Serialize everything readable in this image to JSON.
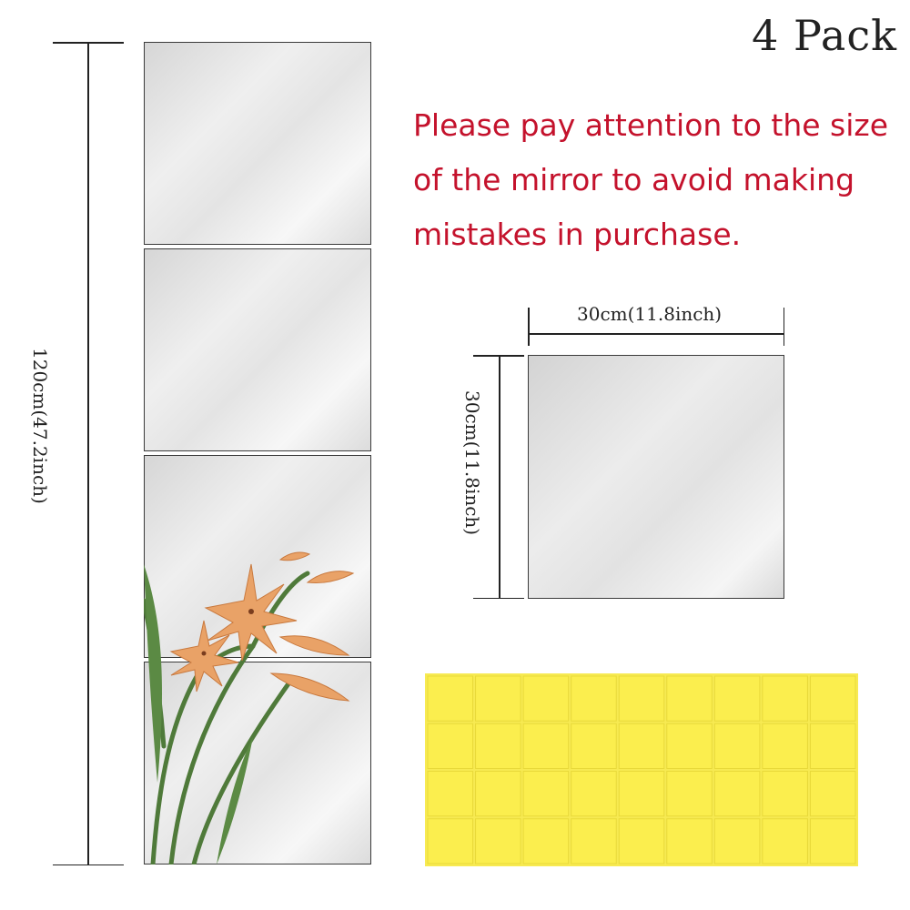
{
  "product": {
    "pack_label": "4 Pack",
    "notice": "Please pay attention to the size of the mirror to avoid making mistakes in purchase."
  },
  "dimensions": {
    "total_height": "120cm(47.2inch)",
    "tile_width": "30cm(11.8inch)",
    "tile_height": "30cm(11.8inch)"
  },
  "colors": {
    "notice_text": "#c4122c",
    "adhesive_pad": "#f7ea52"
  },
  "adhesive": {
    "columns": 9,
    "rows": 4
  }
}
